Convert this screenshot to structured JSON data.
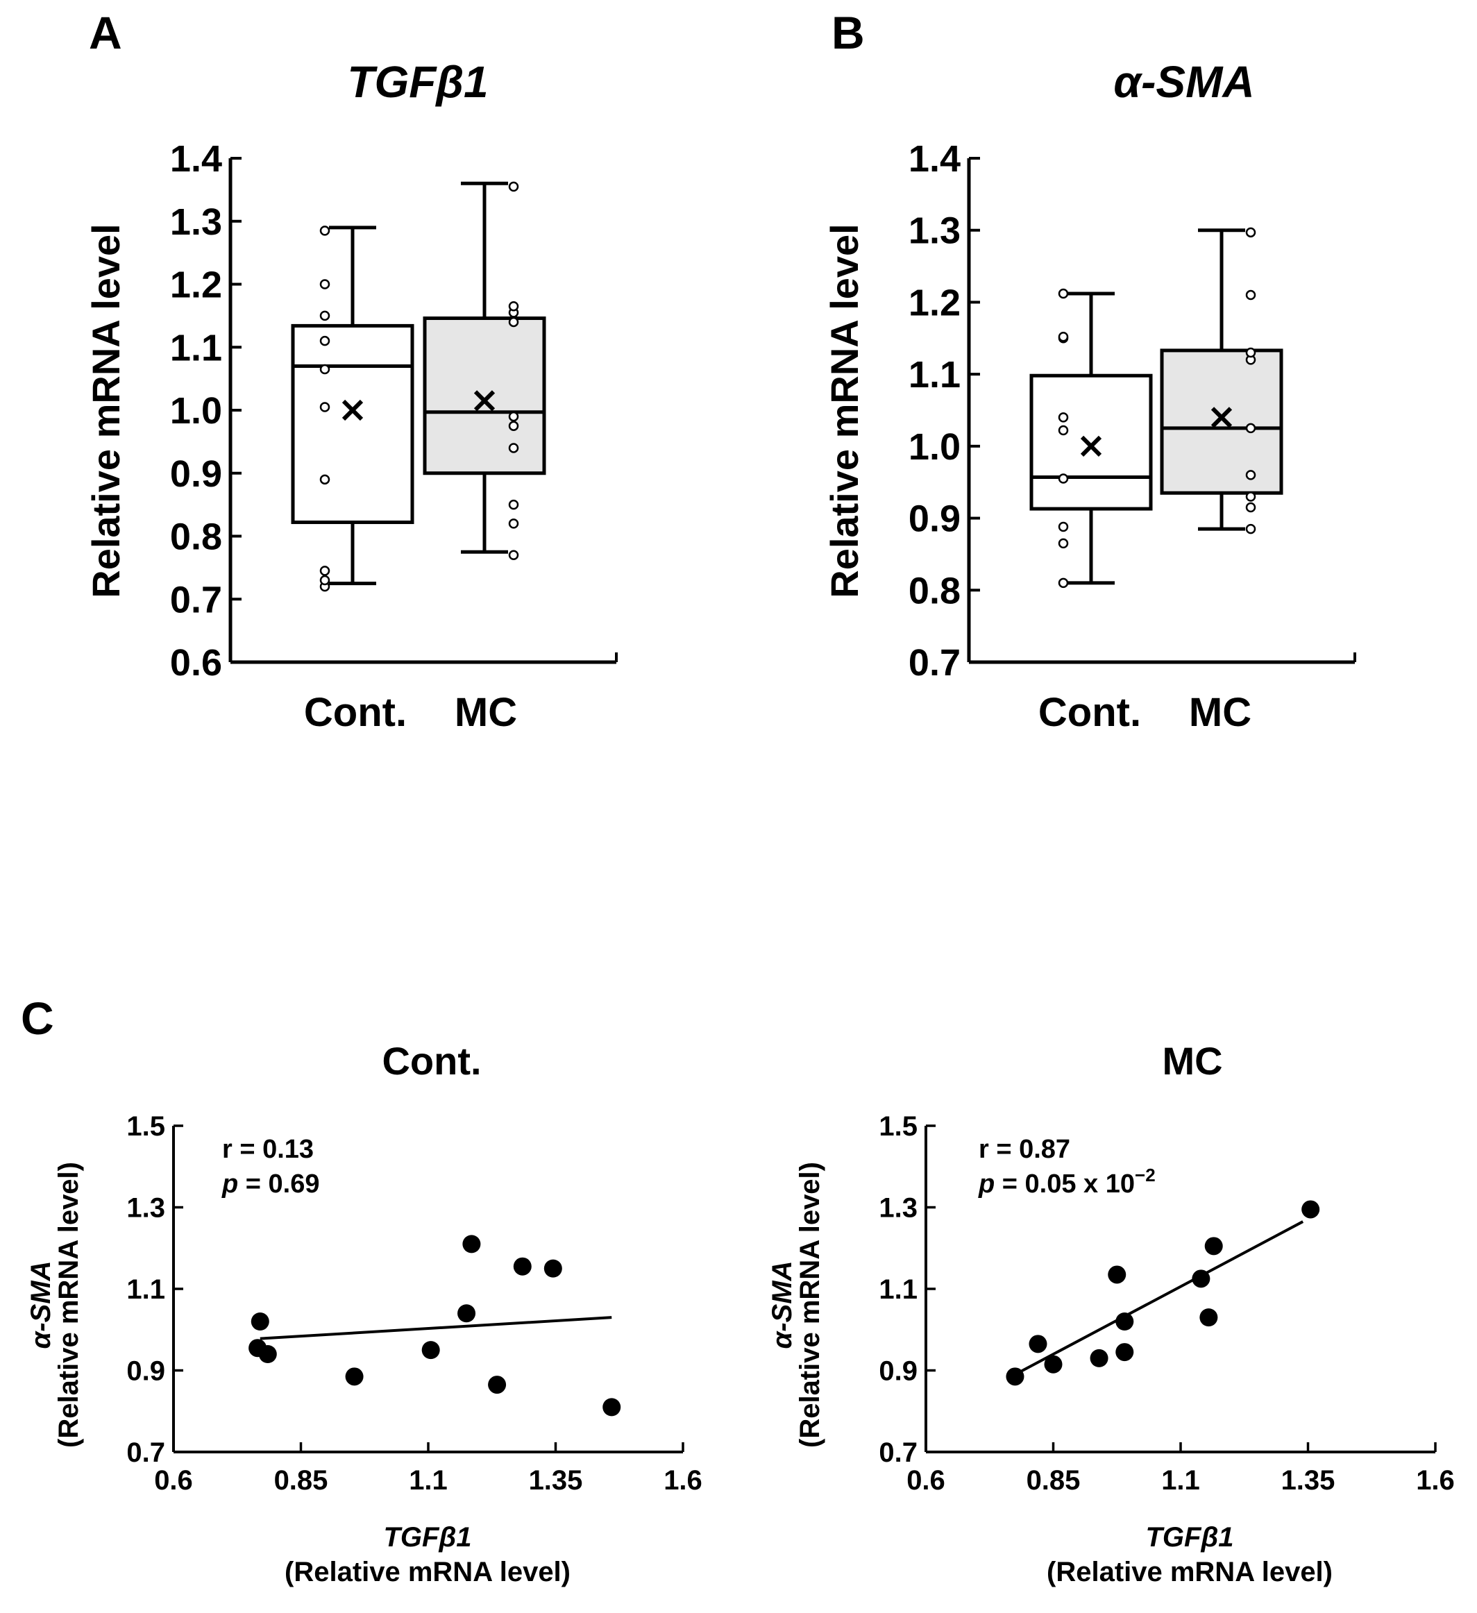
{
  "colors": {
    "ink": "#000000",
    "box_control": "#ffffff",
    "box_mc": "#e6e6e6",
    "background": "#ffffff"
  },
  "panel_a": {
    "letter": "A",
    "title": "TGFβ1",
    "ylabel": "Relative mRNA level",
    "categories": [
      "Cont.",
      "MC"
    ],
    "y_ticks": [
      "1.4",
      "1.3",
      "1.2",
      "1.1",
      "1.0",
      "0.9",
      "0.8",
      "0.7",
      "0.6"
    ]
  },
  "panel_b": {
    "letter": "B",
    "title": "α-SMA",
    "ylabel": "Relative mRNA level",
    "categories": [
      "Cont.",
      "MC"
    ],
    "y_ticks": [
      "1.4",
      "1.3",
      "1.2",
      "1.1",
      "1.0",
      "0.9",
      "0.8",
      "0.7"
    ]
  },
  "panel_c": {
    "letter": "C",
    "left": {
      "title": "Cont.",
      "ylabel_gene": "α-SMA",
      "ylabel": "(Relative mRNA level)",
      "xlabel_gene": "TGFβ1",
      "xlabel": "(Relative mRNA level)",
      "stat_r": "r = 0.13",
      "stat_p_symbol": "p",
      "stat_p_value": " = 0.69",
      "x_ticks": [
        "0.6",
        "0.85",
        "1.1",
        "1.35",
        "1.6"
      ],
      "y_ticks": [
        "1.5",
        "1.3",
        "1.1",
        "0.9",
        "0.7"
      ]
    },
    "right": {
      "title": "MC",
      "ylabel_gene": "α-SMA",
      "ylabel": "(Relative mRNA level)",
      "xlabel_gene": "TGFβ1",
      "xlabel": "(Relative mRNA level)",
      "stat_r": "r = 0.87",
      "stat_p_symbol": "p",
      "stat_p_value": " = 0.05 x 10",
      "stat_p_exp": "−2",
      "x_ticks": [
        "0.6",
        "0.85",
        "1.1",
        "1.35",
        "1.6"
      ],
      "y_ticks": [
        "1.5",
        "1.3",
        "1.1",
        "0.9",
        "0.7"
      ]
    }
  },
  "chart_data": [
    {
      "type": "box",
      "panel": "A",
      "title": "TGFβ1",
      "ylabel": "Relative mRNA level",
      "categories": [
        "Cont.",
        "MC"
      ],
      "ylim": [
        0.6,
        1.4
      ],
      "groups": [
        {
          "name": "Cont.",
          "min": 0.725,
          "q1": 0.822,
          "median": 1.07,
          "q3": 1.134,
          "max": 1.29,
          "mean": 1.0,
          "points": [
            0.72,
            0.73,
            0.745,
            0.89,
            1.005,
            1.065,
            1.11,
            1.15,
            1.2,
            1.285
          ]
        },
        {
          "name": "MC",
          "min": 0.775,
          "q1": 0.9,
          "median": 0.997,
          "q3": 1.146,
          "max": 1.36,
          "mean": 1.015,
          "points": [
            0.77,
            0.82,
            0.85,
            0.94,
            0.975,
            0.99,
            1.14,
            1.155,
            1.165,
            1.355
          ]
        }
      ]
    },
    {
      "type": "box",
      "panel": "B",
      "title": "α-SMA",
      "ylabel": "Relative mRNA level",
      "categories": [
        "Cont.",
        "MC"
      ],
      "ylim": [
        0.7,
        1.4
      ],
      "groups": [
        {
          "name": "Cont.",
          "min": 0.81,
          "q1": 0.913,
          "median": 0.957,
          "q3": 1.098,
          "max": 1.212,
          "mean": 1.0,
          "points": [
            0.81,
            0.865,
            0.888,
            0.955,
            1.022,
            1.04,
            1.15,
            1.152,
            1.212
          ]
        },
        {
          "name": "MC",
          "min": 0.885,
          "q1": 0.935,
          "median": 1.025,
          "q3": 1.133,
          "max": 1.3,
          "mean": 1.04,
          "points": [
            0.885,
            0.915,
            0.93,
            0.96,
            1.025,
            1.12,
            1.13,
            1.21,
            1.297
          ]
        }
      ]
    },
    {
      "type": "scatter",
      "panel": "C-left",
      "title": "Cont.",
      "xlabel": "TGFβ1 (Relative mRNA level)",
      "ylabel": "α-SMA (Relative mRNA level)",
      "xlim": [
        0.6,
        1.6
      ],
      "ylim": [
        0.7,
        1.5
      ],
      "x": [
        0.765,
        0.77,
        0.785,
        0.955,
        1.105,
        1.175,
        1.185,
        1.235,
        1.285,
        1.345,
        1.46
      ],
      "y": [
        0.955,
        1.02,
        0.94,
        0.885,
        0.95,
        1.04,
        1.21,
        0.865,
        1.155,
        1.15,
        0.81
      ],
      "fit": {
        "x": [
          0.77,
          1.46
        ],
        "y": [
          0.978,
          1.03
        ]
      },
      "r": 0.13,
      "p": 0.69
    },
    {
      "type": "scatter",
      "panel": "C-right",
      "title": "MC",
      "xlabel": "TGFβ1 (Relative mRNA level)",
      "ylabel": "α-SMA (Relative mRNA level)",
      "xlim": [
        0.6,
        1.6
      ],
      "ylim": [
        0.7,
        1.5
      ],
      "x": [
        0.775,
        0.82,
        0.85,
        0.94,
        0.975,
        0.99,
        0.99,
        1.14,
        1.155,
        1.165,
        1.355
      ],
      "y": [
        0.885,
        0.965,
        0.915,
        0.93,
        1.135,
        1.02,
        0.945,
        1.125,
        1.03,
        1.205,
        1.295
      ],
      "fit": {
        "x": [
          0.775,
          1.34
        ],
        "y": [
          0.89,
          1.265
        ]
      },
      "r": 0.87,
      "p": "0.05 x 10^-2"
    }
  ]
}
